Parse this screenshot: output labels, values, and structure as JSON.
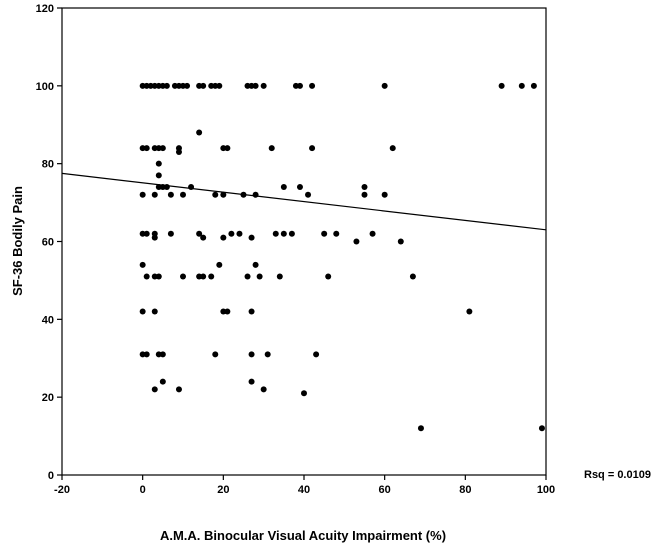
{
  "chart_data": {
    "type": "scatter",
    "title": "",
    "xlabel": "A.M.A. Binocular Visual Acuity Impairment (%)",
    "ylabel": "SF-36 Bodily Pain",
    "xlim": [
      -20,
      100
    ],
    "ylim": [
      0,
      120
    ],
    "xticks": [
      -20,
      0,
      20,
      40,
      60,
      80,
      100
    ],
    "yticks": [
      0,
      20,
      40,
      60,
      80,
      100,
      120
    ],
    "grid": false,
    "annotation": "Rsq = 0.0109",
    "regression_line": {
      "x": [
        -20,
        100
      ],
      "y": [
        77.5,
        63
      ]
    },
    "points": [
      [
        0,
        100
      ],
      [
        1,
        100
      ],
      [
        2,
        100
      ],
      [
        3,
        100
      ],
      [
        4,
        100
      ],
      [
        5,
        100
      ],
      [
        6,
        100
      ],
      [
        8,
        100
      ],
      [
        9,
        100
      ],
      [
        10,
        100
      ],
      [
        11,
        100
      ],
      [
        14,
        100
      ],
      [
        15,
        100
      ],
      [
        17,
        100
      ],
      [
        18,
        100
      ],
      [
        19,
        100
      ],
      [
        26,
        100
      ],
      [
        27,
        100
      ],
      [
        28,
        100
      ],
      [
        30,
        100
      ],
      [
        38,
        100
      ],
      [
        39,
        100
      ],
      [
        42,
        100
      ],
      [
        60,
        100
      ],
      [
        89,
        100
      ],
      [
        94,
        100
      ],
      [
        97,
        100
      ],
      [
        0,
        84
      ],
      [
        1,
        84
      ],
      [
        3,
        84
      ],
      [
        4,
        84
      ],
      [
        5,
        84
      ],
      [
        9,
        84
      ],
      [
        9,
        83
      ],
      [
        20,
        84
      ],
      [
        21,
        84
      ],
      [
        32,
        84
      ],
      [
        42,
        84
      ],
      [
        62,
        84
      ],
      [
        14,
        88
      ],
      [
        4,
        80
      ],
      [
        4,
        77
      ],
      [
        4,
        74
      ],
      [
        5,
        74
      ],
      [
        6,
        74
      ],
      [
        12,
        74
      ],
      [
        35,
        74
      ],
      [
        39,
        74
      ],
      [
        55,
        74
      ],
      [
        0,
        72
      ],
      [
        3,
        72
      ],
      [
        7,
        72
      ],
      [
        10,
        72
      ],
      [
        18,
        72
      ],
      [
        20,
        72
      ],
      [
        25,
        72
      ],
      [
        28,
        72
      ],
      [
        41,
        72
      ],
      [
        55,
        72
      ],
      [
        60,
        72
      ],
      [
        0,
        62
      ],
      [
        1,
        62
      ],
      [
        3,
        62
      ],
      [
        3,
        61
      ],
      [
        7,
        62
      ],
      [
        14,
        62
      ],
      [
        15,
        61
      ],
      [
        20,
        61
      ],
      [
        22,
        62
      ],
      [
        24,
        62
      ],
      [
        27,
        61
      ],
      [
        33,
        62
      ],
      [
        35,
        62
      ],
      [
        37,
        62
      ],
      [
        45,
        62
      ],
      [
        48,
        62
      ],
      [
        57,
        62
      ],
      [
        64,
        60
      ],
      [
        53,
        60
      ],
      [
        0,
        54
      ],
      [
        1,
        51
      ],
      [
        3,
        51
      ],
      [
        4,
        51
      ],
      [
        10,
        51
      ],
      [
        14,
        51
      ],
      [
        15,
        51
      ],
      [
        17,
        51
      ],
      [
        19,
        54
      ],
      [
        26,
        51
      ],
      [
        28,
        54
      ],
      [
        29,
        51
      ],
      [
        34,
        51
      ],
      [
        46,
        51
      ],
      [
        67,
        51
      ],
      [
        0,
        42
      ],
      [
        3,
        42
      ],
      [
        20,
        42
      ],
      [
        21,
        42
      ],
      [
        27,
        42
      ],
      [
        81,
        42
      ],
      [
        0,
        31
      ],
      [
        1,
        31
      ],
      [
        4,
        31
      ],
      [
        5,
        31
      ],
      [
        18,
        31
      ],
      [
        27,
        31
      ],
      [
        31,
        31
      ],
      [
        43,
        31
      ],
      [
        3,
        22
      ],
      [
        5,
        24
      ],
      [
        9,
        22
      ],
      [
        27,
        24
      ],
      [
        30,
        22
      ],
      [
        40,
        21
      ],
      [
        69,
        12
      ],
      [
        99,
        12
      ]
    ]
  }
}
